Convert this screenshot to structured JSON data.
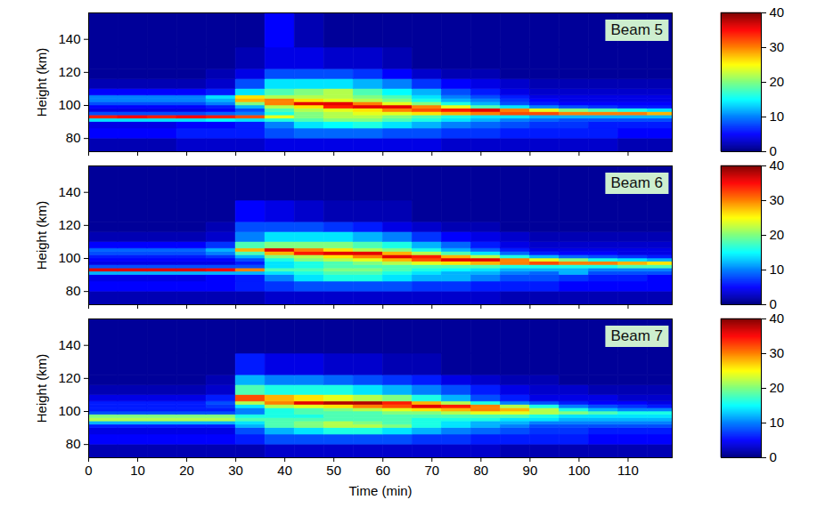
{
  "chart_data": [
    {
      "type": "heatmap",
      "annotation": "Beam 5",
      "ylabel": "Height (km)",
      "xlim": [
        0,
        119
      ],
      "xticks": [
        0,
        10,
        20,
        30,
        40,
        50,
        60,
        70,
        80,
        90,
        100,
        110
      ],
      "ylim": [
        72,
        156
      ],
      "yticks": [
        80,
        100,
        120,
        140
      ],
      "tick_labels": "y",
      "time_edges": [
        0,
        6,
        12,
        18,
        24,
        30,
        36,
        42,
        48,
        54,
        60,
        66,
        72,
        78,
        84,
        90,
        96,
        102,
        108,
        114,
        119
      ],
      "height_edges": [
        72,
        80,
        86,
        90,
        92,
        94,
        96,
        98,
        100,
        102,
        104,
        106,
        110,
        116,
        122,
        135,
        156
      ],
      "colorbar_range": [
        0,
        40
      ],
      "colorbar_ticks": [
        0,
        10,
        20,
        30,
        40
      ],
      "cells": [
        [
          2,
          2,
          2,
          3,
          3,
          3,
          4,
          4,
          4,
          4,
          4,
          4,
          3,
          3,
          3,
          3,
          3,
          3,
          2,
          2
        ],
        [
          5,
          5,
          5,
          6,
          6,
          6,
          8,
          9,
          9,
          9,
          8,
          8,
          7,
          7,
          6,
          6,
          6,
          6,
          5,
          5
        ],
        [
          4,
          4,
          4,
          5,
          5,
          6,
          10,
          14,
          15,
          16,
          14,
          12,
          10,
          9,
          8,
          7,
          7,
          6,
          6,
          6
        ],
        [
          14,
          14,
          14,
          14,
          15,
          14,
          16,
          18,
          20,
          20,
          18,
          16,
          14,
          12,
          10,
          9,
          8,
          8,
          8,
          8
        ],
        [
          34,
          35,
          34,
          35,
          34,
          32,
          24,
          20,
          22,
          22,
          20,
          18,
          16,
          14,
          14,
          12,
          12,
          12,
          12,
          12
        ],
        [
          8,
          8,
          8,
          8,
          9,
          10,
          16,
          20,
          22,
          24,
          24,
          26,
          28,
          30,
          32,
          32,
          30,
          30,
          30,
          28
        ],
        [
          4,
          4,
          4,
          4,
          5,
          8,
          18,
          22,
          24,
          26,
          30,
          32,
          34,
          36,
          30,
          24,
          20,
          18,
          16,
          14
        ],
        [
          5,
          5,
          5,
          5,
          6,
          12,
          22,
          26,
          34,
          36,
          36,
          30,
          24,
          18,
          14,
          10,
          8,
          7,
          6,
          6
        ],
        [
          8,
          8,
          8,
          8,
          10,
          20,
          30,
          36,
          36,
          30,
          24,
          20,
          16,
          12,
          8,
          6,
          5,
          5,
          5,
          5
        ],
        [
          10,
          10,
          10,
          10,
          12,
          28,
          30,
          26,
          24,
          22,
          20,
          16,
          12,
          10,
          7,
          5,
          4,
          4,
          4,
          4
        ],
        [
          10,
          10,
          10,
          10,
          14,
          26,
          22,
          22,
          22,
          20,
          18,
          14,
          10,
          8,
          6,
          4,
          4,
          4,
          4,
          4
        ],
        [
          5,
          5,
          5,
          5,
          6,
          14,
          18,
          20,
          22,
          18,
          15,
          12,
          8,
          6,
          4,
          3,
          3,
          3,
          3,
          3
        ],
        [
          2,
          2,
          2,
          2,
          3,
          8,
          14,
          14,
          14,
          12,
          10,
          7,
          5,
          4,
          3,
          2,
          2,
          2,
          2,
          2
        ],
        [
          1,
          1,
          1,
          1,
          2,
          4,
          8,
          8,
          8,
          7,
          5,
          3,
          2,
          2,
          1,
          1,
          1,
          1,
          1,
          1
        ],
        [
          1,
          1,
          1,
          1,
          1,
          2,
          4,
          4,
          3,
          3,
          2,
          1,
          1,
          1,
          1,
          1,
          1,
          1,
          1,
          1
        ],
        [
          1,
          1,
          1,
          1,
          1,
          1,
          5,
          2,
          1,
          1,
          1,
          1,
          1,
          1,
          1,
          1,
          1,
          1,
          1,
          1
        ]
      ]
    },
    {
      "type": "heatmap",
      "annotation": "Beam 6",
      "ylabel": "Height (km)",
      "xlim": [
        0,
        119
      ],
      "xticks": [
        0,
        10,
        20,
        30,
        40,
        50,
        60,
        70,
        80,
        90,
        100,
        110
      ],
      "ylim": [
        72,
        156
      ],
      "yticks": [
        80,
        100,
        120,
        140
      ],
      "tick_labels": "y",
      "time_edges": [
        0,
        6,
        12,
        18,
        24,
        30,
        36,
        42,
        48,
        54,
        60,
        66,
        72,
        78,
        84,
        90,
        96,
        102,
        108,
        114,
        119
      ],
      "height_edges": [
        72,
        80,
        86,
        90,
        92,
        94,
        96,
        98,
        100,
        102,
        104,
        106,
        110,
        116,
        122,
        135,
        156
      ],
      "colorbar_range": [
        0,
        40
      ],
      "colorbar_ticks": [
        0,
        10,
        20,
        30,
        40
      ],
      "cells": [
        [
          2,
          2,
          2,
          2,
          2,
          2,
          3,
          3,
          3,
          3,
          3,
          3,
          3,
          3,
          2,
          2,
          2,
          2,
          2,
          2
        ],
        [
          5,
          5,
          5,
          5,
          5,
          6,
          7,
          8,
          8,
          8,
          8,
          7,
          7,
          6,
          6,
          6,
          5,
          5,
          5,
          5
        ],
        [
          4,
          4,
          4,
          4,
          5,
          6,
          10,
          14,
          16,
          16,
          14,
          12,
          12,
          10,
          8,
          8,
          7,
          6,
          6,
          5
        ],
        [
          12,
          12,
          12,
          12,
          12,
          12,
          14,
          16,
          18,
          18,
          16,
          14,
          12,
          12,
          10,
          9,
          12,
          8,
          8,
          8
        ],
        [
          36,
          36,
          36,
          36,
          35,
          30,
          18,
          18,
          20,
          20,
          18,
          16,
          15,
          14,
          12,
          12,
          12,
          10,
          10,
          10
        ],
        [
          8,
          8,
          8,
          8,
          8,
          8,
          14,
          16,
          18,
          18,
          18,
          18,
          18,
          18,
          16,
          16,
          16,
          16,
          18,
          18
        ],
        [
          4,
          4,
          4,
          4,
          4,
          6,
          14,
          16,
          18,
          20,
          22,
          24,
          26,
          28,
          30,
          32,
          30,
          30,
          28,
          26
        ],
        [
          5,
          5,
          5,
          5,
          5,
          8,
          16,
          20,
          22,
          24,
          28,
          32,
          36,
          36,
          30,
          24,
          20,
          16,
          14,
          12
        ],
        [
          6,
          6,
          6,
          6,
          7,
          12,
          20,
          22,
          26,
          30,
          36,
          34,
          28,
          22,
          16,
          12,
          9,
          8,
          7,
          6
        ],
        [
          8,
          8,
          8,
          8,
          10,
          18,
          28,
          34,
          36,
          36,
          28,
          22,
          18,
          14,
          9,
          6,
          5,
          5,
          4,
          4
        ],
        [
          9,
          9,
          9,
          9,
          12,
          28,
          36,
          30,
          26,
          22,
          20,
          16,
          12,
          9,
          6,
          4,
          4,
          4,
          4,
          4
        ],
        [
          5,
          5,
          5,
          5,
          7,
          18,
          20,
          20,
          20,
          18,
          16,
          12,
          9,
          6,
          4,
          3,
          3,
          3,
          3,
          3
        ],
        [
          2,
          2,
          2,
          2,
          3,
          10,
          14,
          14,
          14,
          12,
          10,
          7,
          5,
          4,
          3,
          2,
          2,
          2,
          2,
          2
        ],
        [
          1,
          1,
          1,
          1,
          2,
          8,
          8,
          8,
          7,
          6,
          4,
          3,
          2,
          2,
          1,
          1,
          1,
          1,
          1,
          1
        ],
        [
          1,
          1,
          1,
          1,
          1,
          5,
          4,
          3,
          2,
          2,
          2,
          1,
          1,
          1,
          1,
          1,
          1,
          1,
          1,
          1
        ],
        [
          1,
          1,
          1,
          1,
          1,
          1,
          1,
          1,
          1,
          1,
          1,
          1,
          1,
          1,
          1,
          1,
          1,
          1,
          1,
          1
        ]
      ]
    },
    {
      "type": "heatmap",
      "annotation": "Beam 7",
      "ylabel": "Height (km)",
      "xlabel": "Time (min)",
      "xlim": [
        0,
        119
      ],
      "xticks": [
        0,
        10,
        20,
        30,
        40,
        50,
        60,
        70,
        80,
        90,
        100,
        110
      ],
      "ylim": [
        72,
        156
      ],
      "yticks": [
        80,
        100,
        120,
        140
      ],
      "time_edges": [
        0,
        6,
        12,
        18,
        24,
        30,
        36,
        42,
        48,
        54,
        60,
        66,
        72,
        78,
        84,
        90,
        96,
        102,
        108,
        114,
        119
      ],
      "height_edges": [
        72,
        80,
        86,
        90,
        92,
        94,
        96,
        98,
        100,
        102,
        104,
        106,
        110,
        116,
        122,
        135,
        156
      ],
      "colorbar_range": [
        0,
        40
      ],
      "colorbar_ticks": [
        0,
        10,
        20,
        30,
        40
      ],
      "cells": [
        [
          2,
          2,
          2,
          2,
          2,
          2,
          3,
          3,
          3,
          3,
          3,
          3,
          3,
          3,
          2,
          2,
          2,
          2,
          2,
          2
        ],
        [
          5,
          5,
          5,
          5,
          5,
          6,
          8,
          8,
          8,
          8,
          8,
          7,
          7,
          6,
          6,
          6,
          6,
          5,
          5,
          5
        ],
        [
          4,
          4,
          4,
          4,
          4,
          8,
          12,
          14,
          16,
          16,
          14,
          12,
          10,
          9,
          8,
          7,
          7,
          6,
          6,
          6
        ],
        [
          6,
          6,
          6,
          6,
          6,
          12,
          18,
          20,
          22,
          22,
          20,
          16,
          14,
          12,
          10,
          8,
          8,
          8,
          8,
          8
        ],
        [
          12,
          12,
          12,
          12,
          12,
          14,
          18,
          20,
          22,
          20,
          18,
          16,
          14,
          12,
          12,
          10,
          10,
          10,
          10,
          10
        ],
        [
          22,
          22,
          22,
          22,
          22,
          18,
          18,
          18,
          18,
          18,
          18,
          16,
          16,
          16,
          14,
          14,
          12,
          12,
          12,
          12
        ],
        [
          20,
          20,
          20,
          20,
          20,
          16,
          16,
          16,
          18,
          18,
          18,
          18,
          18,
          18,
          18,
          16,
          14,
          14,
          14,
          14
        ],
        [
          8,
          8,
          8,
          8,
          8,
          10,
          16,
          18,
          18,
          18,
          20,
          20,
          22,
          24,
          24,
          22,
          20,
          18,
          16,
          16
        ],
        [
          6,
          6,
          6,
          6,
          6,
          10,
          16,
          18,
          20,
          22,
          24,
          26,
          28,
          30,
          28,
          22,
          16,
          12,
          10,
          10
        ],
        [
          6,
          6,
          6,
          6,
          7,
          14,
          22,
          24,
          26,
          30,
          32,
          36,
          34,
          30,
          22,
          16,
          10,
          8,
          7,
          6
        ],
        [
          6,
          6,
          6,
          6,
          8,
          22,
          30,
          36,
          38,
          38,
          34,
          28,
          22,
          16,
          10,
          8,
          6,
          5,
          5,
          4
        ],
        [
          4,
          4,
          4,
          4,
          6,
          32,
          28,
          26,
          24,
          22,
          20,
          16,
          12,
          8,
          6,
          4,
          4,
          4,
          3,
          3
        ],
        [
          2,
          2,
          2,
          2,
          3,
          18,
          16,
          16,
          16,
          14,
          12,
          10,
          8,
          6,
          4,
          3,
          3,
          2,
          2,
          2
        ],
        [
          1,
          1,
          1,
          1,
          2,
          12,
          10,
          10,
          9,
          8,
          7,
          6,
          4,
          3,
          2,
          2,
          1,
          1,
          1,
          1
        ],
        [
          1,
          1,
          1,
          1,
          1,
          6,
          4,
          4,
          3,
          3,
          2,
          2,
          1,
          1,
          1,
          1,
          1,
          1,
          1,
          1
        ],
        [
          1,
          1,
          1,
          1,
          1,
          1,
          1,
          1,
          1,
          1,
          1,
          1,
          1,
          1,
          1,
          1,
          1,
          1,
          1,
          1
        ]
      ]
    }
  ]
}
